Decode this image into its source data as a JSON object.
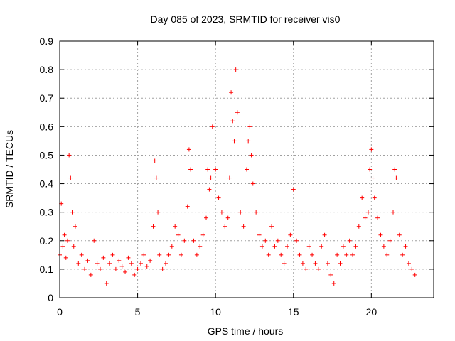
{
  "chart_data": {
    "type": "scatter",
    "title": "Day 085 of 2023, SRMTID for receiver vis0",
    "xlabel": "GPS time / hours",
    "ylabel": "SRMTID / TECUs",
    "xlim": [
      0,
      24
    ],
    "ylim": [
      0,
      0.9
    ],
    "x_ticks": [
      0,
      5,
      10,
      15,
      20
    ],
    "x_tick_labels": [
      "0",
      "5",
      "10",
      "15",
      "20"
    ],
    "y_ticks": [
      0,
      0.1,
      0.2,
      0.3,
      0.4,
      0.5,
      0.6,
      0.7,
      0.8,
      0.9
    ],
    "y_tick_labels": [
      "0",
      "0.1",
      "0.2",
      "0.3",
      "0.4",
      "0.5",
      "0.6",
      "0.7",
      "0.8",
      "0.9"
    ],
    "grid": true,
    "marker": "plus",
    "marker_color": "#ff0000",
    "series": [
      {
        "name": "SRMTID",
        "x": [
          0.0,
          0.1,
          0.2,
          0.3,
          0.4,
          0.5,
          0.6,
          0.7,
          0.8,
          0.9,
          1.0,
          1.2,
          1.4,
          1.6,
          1.8,
          2.0,
          2.2,
          2.4,
          2.6,
          2.8,
          3.0,
          3.2,
          3.4,
          3.6,
          3.8,
          4.0,
          4.2,
          4.4,
          4.6,
          4.8,
          5.0,
          5.2,
          5.4,
          5.6,
          5.8,
          6.0,
          6.1,
          6.2,
          6.3,
          6.4,
          6.6,
          6.8,
          7.0,
          7.2,
          7.4,
          7.6,
          7.8,
          8.0,
          8.2,
          8.3,
          8.4,
          8.6,
          8.8,
          9.0,
          9.2,
          9.4,
          9.5,
          9.6,
          9.7,
          9.8,
          10.0,
          10.2,
          10.4,
          10.6,
          10.8,
          10.9,
          11.0,
          11.1,
          11.2,
          11.3,
          11.4,
          11.6,
          11.8,
          12.0,
          12.1,
          12.2,
          12.3,
          12.4,
          12.6,
          12.8,
          13.0,
          13.2,
          13.4,
          13.6,
          13.8,
          14.0,
          14.2,
          14.4,
          14.6,
          14.8,
          15.0,
          15.2,
          15.4,
          15.6,
          15.8,
          16.0,
          16.2,
          16.4,
          16.6,
          16.8,
          17.0,
          17.2,
          17.4,
          17.6,
          17.8,
          18.0,
          18.2,
          18.4,
          18.6,
          18.8,
          19.0,
          19.2,
          19.4,
          19.6,
          19.8,
          19.9,
          20.0,
          20.1,
          20.2,
          20.4,
          20.6,
          20.8,
          21.0,
          21.2,
          21.4,
          21.5,
          21.6,
          21.8,
          22.0,
          22.2,
          22.4,
          22.6,
          22.8
        ],
        "y": [
          0.15,
          0.33,
          0.18,
          0.22,
          0.14,
          0.2,
          0.5,
          0.42,
          0.3,
          0.18,
          0.25,
          0.12,
          0.15,
          0.1,
          0.13,
          0.08,
          0.2,
          0.12,
          0.1,
          0.14,
          0.05,
          0.12,
          0.15,
          0.1,
          0.13,
          0.11,
          0.09,
          0.14,
          0.12,
          0.08,
          0.1,
          0.12,
          0.15,
          0.11,
          0.13,
          0.25,
          0.48,
          0.42,
          0.3,
          0.15,
          0.1,
          0.12,
          0.15,
          0.18,
          0.25,
          0.22,
          0.15,
          0.2,
          0.32,
          0.52,
          0.45,
          0.2,
          0.15,
          0.18,
          0.22,
          0.28,
          0.45,
          0.38,
          0.42,
          0.6,
          0.45,
          0.35,
          0.3,
          0.25,
          0.28,
          0.42,
          0.72,
          0.62,
          0.55,
          0.8,
          0.65,
          0.3,
          0.25,
          0.45,
          0.55,
          0.6,
          0.5,
          0.4,
          0.3,
          0.22,
          0.18,
          0.2,
          0.15,
          0.25,
          0.18,
          0.2,
          0.15,
          0.12,
          0.18,
          0.22,
          0.38,
          0.2,
          0.15,
          0.12,
          0.1,
          0.18,
          0.15,
          0.12,
          0.1,
          0.18,
          0.22,
          0.12,
          0.08,
          0.05,
          0.15,
          0.12,
          0.18,
          0.15,
          0.2,
          0.15,
          0.18,
          0.25,
          0.35,
          0.28,
          0.3,
          0.45,
          0.52,
          0.42,
          0.35,
          0.28,
          0.22,
          0.18,
          0.15,
          0.2,
          0.3,
          0.45,
          0.42,
          0.22,
          0.15,
          0.18,
          0.12,
          0.1,
          0.08
        ]
      }
    ]
  }
}
